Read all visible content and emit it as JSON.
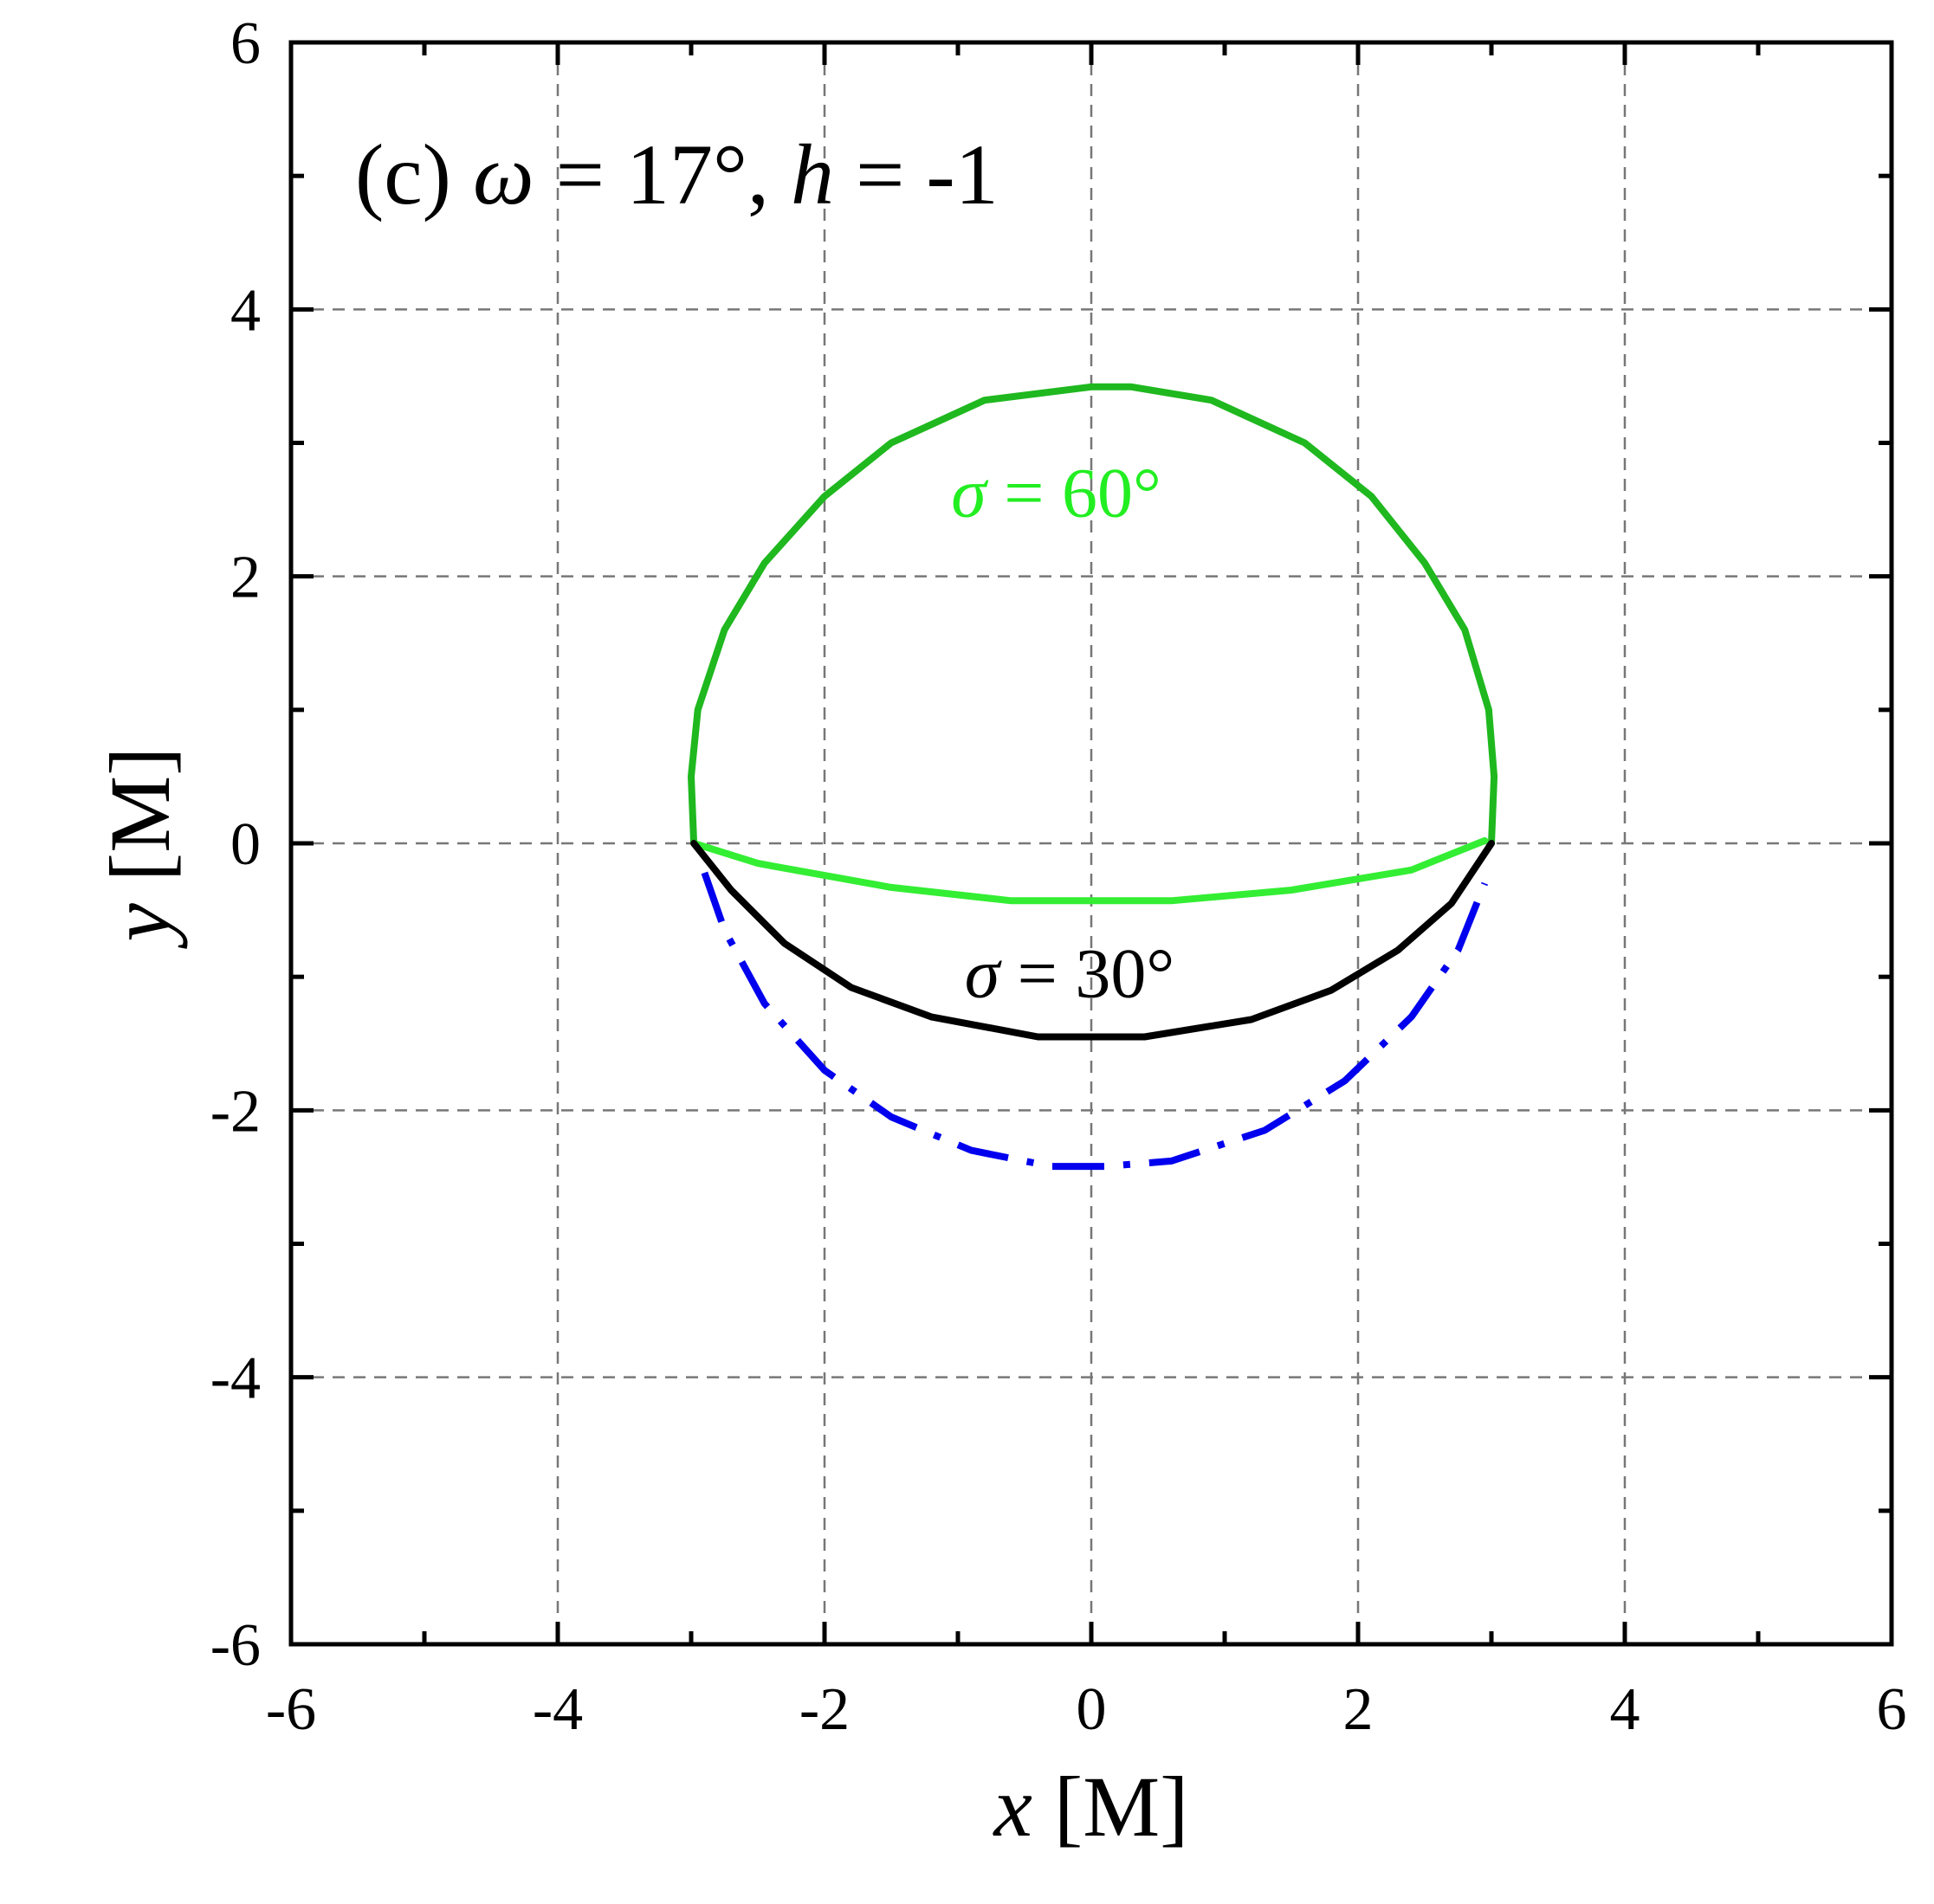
{
  "chart_data": {
    "type": "line",
    "title_parts": {
      "prefix": "(c) ",
      "omega_symbol": "ω",
      "omega_value": " = 17°, ",
      "h_symbol": "h",
      "h_value": " = -1"
    },
    "xlabel": {
      "symbol": "x",
      "unit": " [M]"
    },
    "ylabel": {
      "symbol": "y",
      "unit": " [M]"
    },
    "xlim": [
      -6,
      6
    ],
    "ylim": [
      -6,
      6
    ],
    "xticks": [
      "-6",
      "-4",
      "-2",
      "0",
      "2",
      "4",
      "6"
    ],
    "yticks": [
      "-6",
      "-4",
      "-2",
      "0",
      "2",
      "4",
      "6"
    ],
    "grid": true,
    "series": [
      {
        "name": "σ = 60° (upper)",
        "color": "#1fb81f",
        "style": "solid",
        "points": [
          [
            -2.98,
            0.0
          ],
          [
            -3.0,
            0.5
          ],
          [
            -2.95,
            1.0
          ],
          [
            -2.75,
            1.6
          ],
          [
            -2.45,
            2.1
          ],
          [
            -2.0,
            2.6
          ],
          [
            -1.5,
            3.0
          ],
          [
            -0.8,
            3.32
          ],
          [
            0.0,
            3.42
          ],
          [
            0.3,
            3.42
          ],
          [
            0.9,
            3.32
          ],
          [
            1.6,
            3.0
          ],
          [
            2.1,
            2.6
          ],
          [
            2.5,
            2.1
          ],
          [
            2.8,
            1.6
          ],
          [
            2.98,
            1.0
          ],
          [
            3.02,
            0.5
          ],
          [
            3.0,
            0.0
          ]
        ]
      },
      {
        "name": "σ = 60° (lower)",
        "color": "#33ee33",
        "style": "solid",
        "points": [
          [
            -2.98,
            0.0
          ],
          [
            -2.5,
            -0.15
          ],
          [
            -1.5,
            -0.33
          ],
          [
            -0.6,
            -0.43
          ],
          [
            0.0,
            -0.43
          ],
          [
            0.6,
            -0.43
          ],
          [
            1.5,
            -0.35
          ],
          [
            2.4,
            -0.2
          ],
          [
            2.95,
            0.02
          ]
        ]
      },
      {
        "name": "σ = 30°",
        "color": "#000000",
        "style": "solid",
        "points": [
          [
            -2.98,
            0.0
          ],
          [
            -2.7,
            -0.35
          ],
          [
            -2.3,
            -0.75
          ],
          [
            -1.8,
            -1.08
          ],
          [
            -1.2,
            -1.3
          ],
          [
            -0.4,
            -1.45
          ],
          [
            0.0,
            -1.45
          ],
          [
            0.4,
            -1.45
          ],
          [
            1.2,
            -1.32
          ],
          [
            1.8,
            -1.1
          ],
          [
            2.3,
            -0.8
          ],
          [
            2.7,
            -0.45
          ],
          [
            3.0,
            0.0
          ]
        ]
      },
      {
        "name": "dash-dot",
        "color": "#0000ee",
        "style": "dashdot",
        "points": [
          [
            -2.9,
            -0.22
          ],
          [
            -2.75,
            -0.65
          ],
          [
            -2.45,
            -1.2
          ],
          [
            -2.0,
            -1.7
          ],
          [
            -1.5,
            -2.05
          ],
          [
            -0.9,
            -2.3
          ],
          [
            -0.3,
            -2.42
          ],
          [
            0.1,
            -2.42
          ],
          [
            0.6,
            -2.38
          ],
          [
            1.3,
            -2.15
          ],
          [
            1.9,
            -1.78
          ],
          [
            2.4,
            -1.3
          ],
          [
            2.75,
            -0.8
          ],
          [
            2.95,
            -0.3
          ]
        ]
      }
    ],
    "annotations": [
      {
        "symbol": "σ",
        "text": " = 60°",
        "x": -1.05,
        "y": 2.45,
        "color": "#22ee22"
      },
      {
        "symbol": "σ",
        "text": " = 30°",
        "x": -0.95,
        "y": -1.15,
        "color": "#000000"
      }
    ]
  }
}
